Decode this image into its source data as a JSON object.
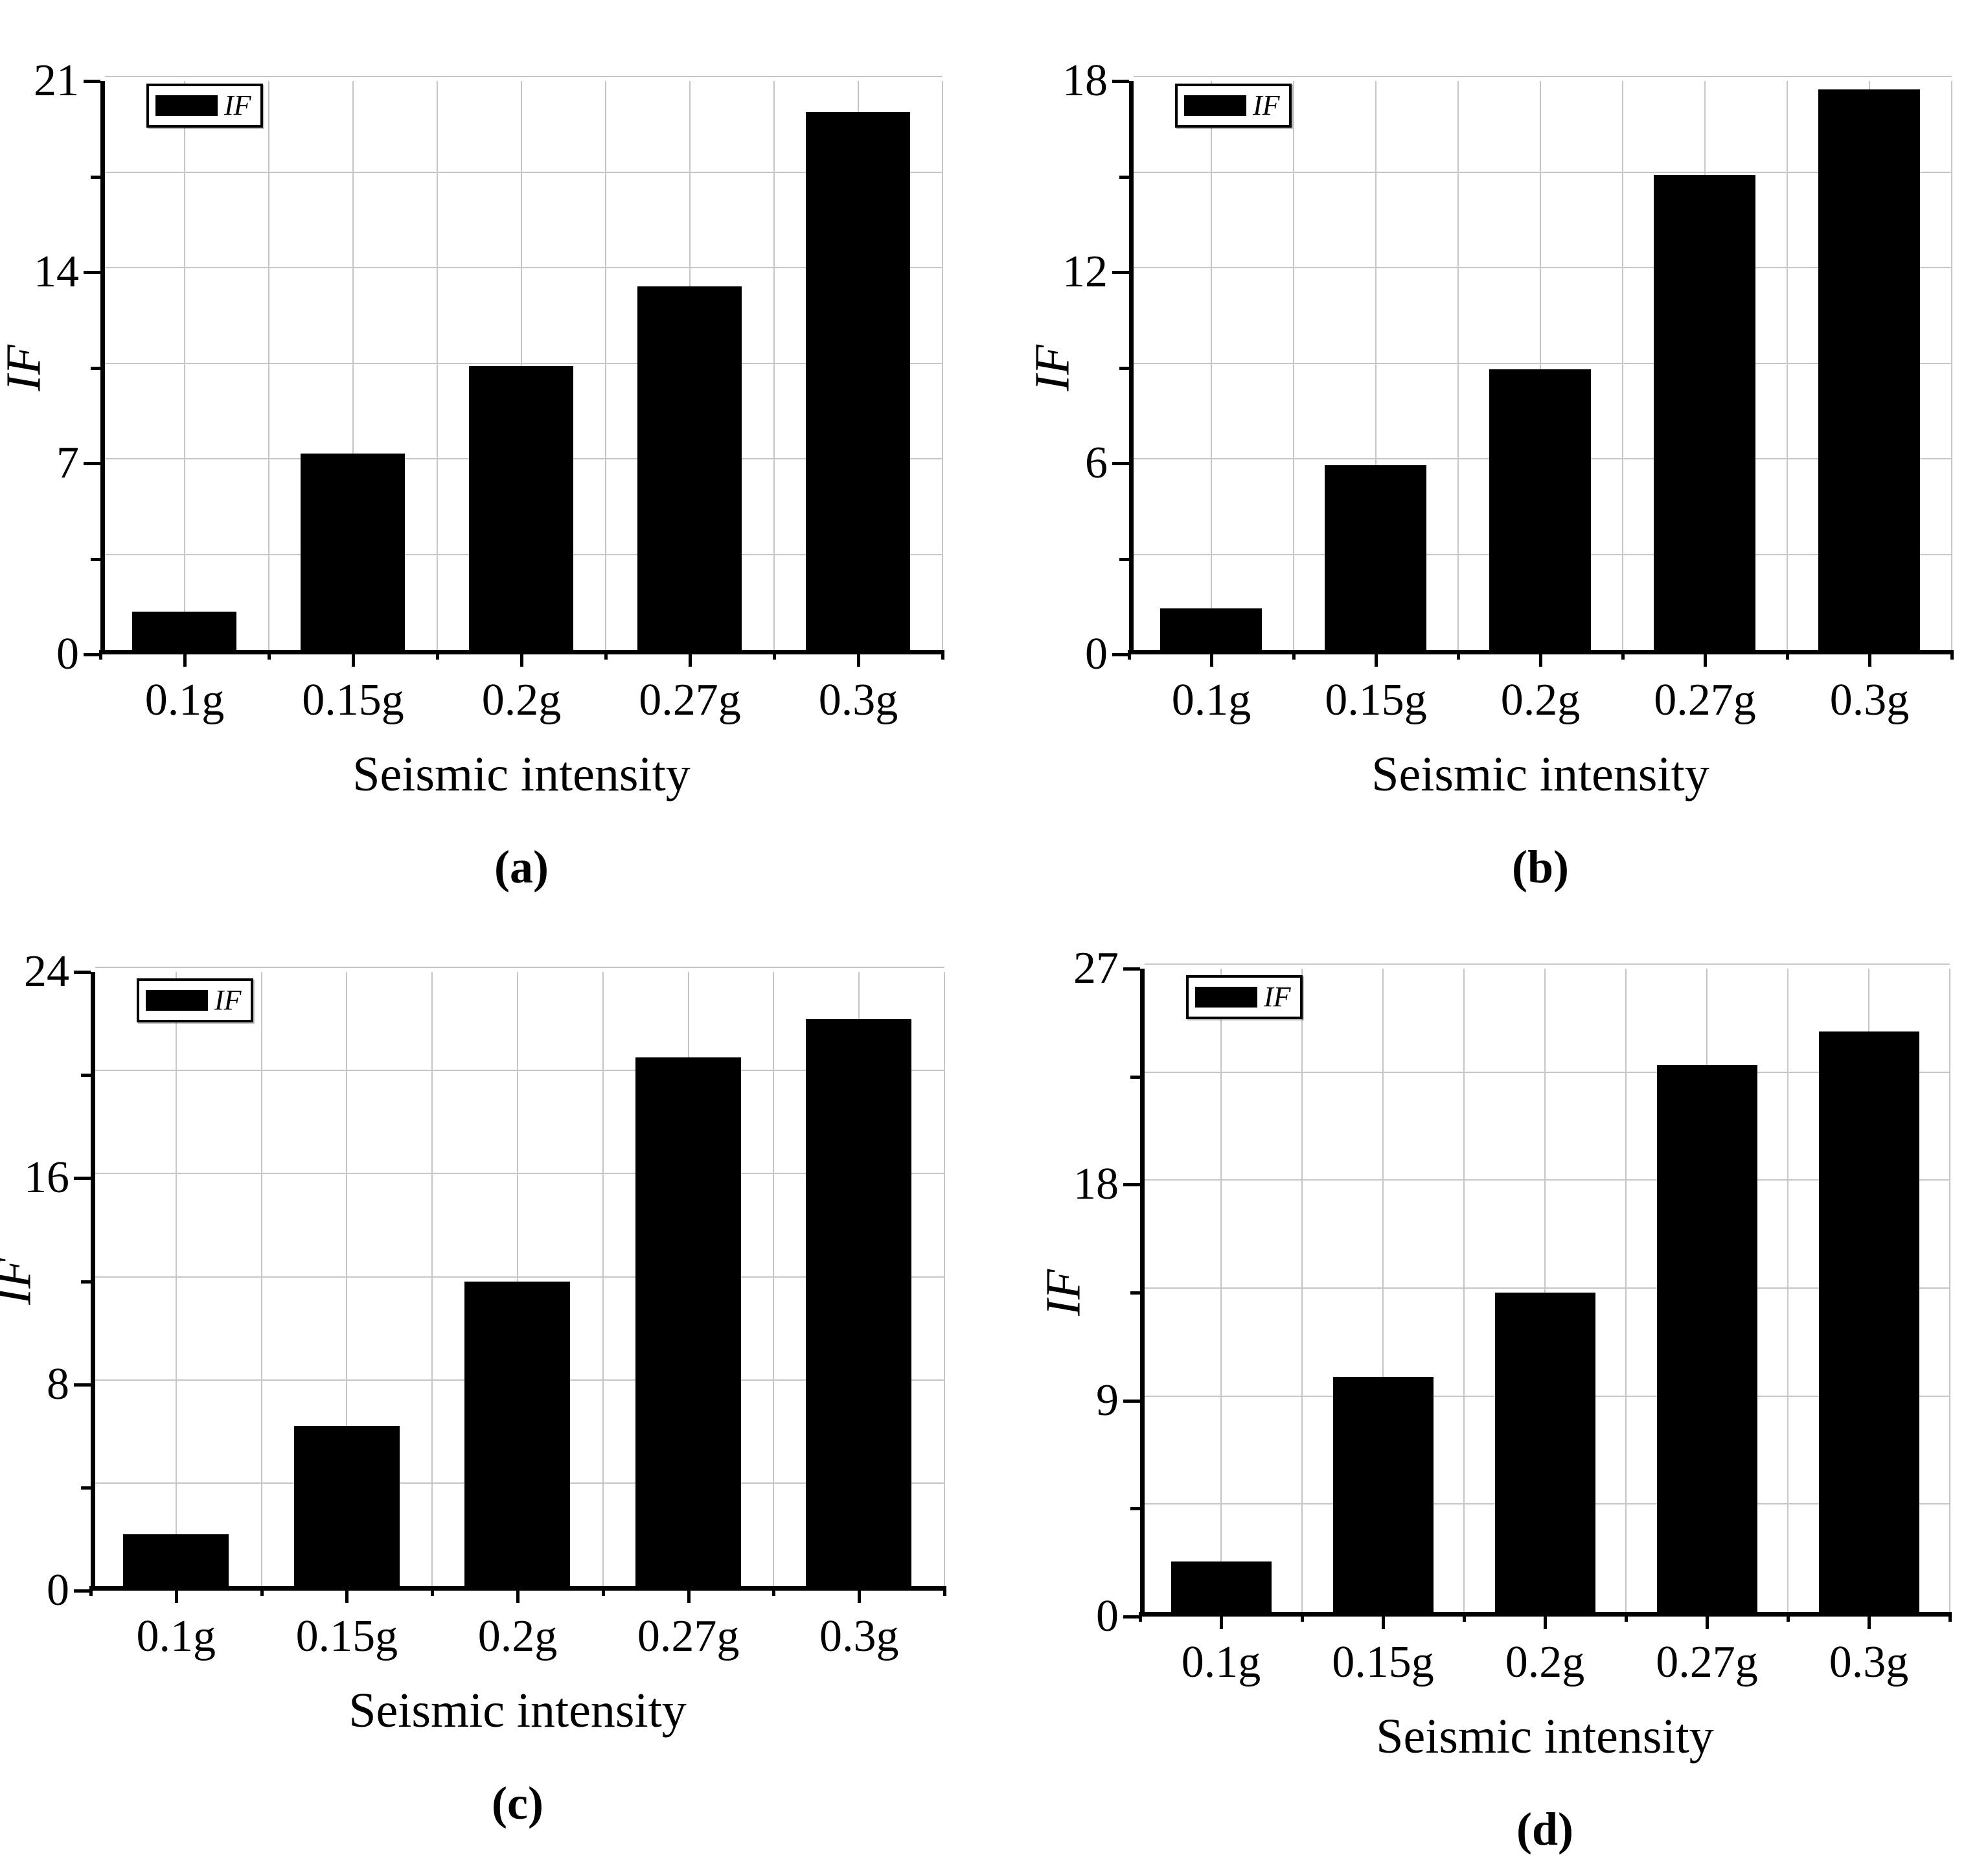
{
  "background": "#ffffff",
  "colors": {
    "bar": "#000000",
    "grid": "#c6c6c6",
    "axis": "#000000",
    "text": "#000000",
    "legend_border": "#000000",
    "legend_background": "#ffffff"
  },
  "x_axis_label": "Seismic intensity",
  "y_axis_label": "IF",
  "legend_label": "IF",
  "categories": [
    "0.1g",
    "0.15g",
    "0.2g",
    "0.27g",
    "0.3g"
  ],
  "chart_data": [
    {
      "type": "bar",
      "panel": "a",
      "caption": "(a)",
      "title": "",
      "xlabel": "Seismic intensity",
      "ylabel": "IF",
      "legend": [
        "IF"
      ],
      "legend_position": "top-left",
      "grid": true,
      "categories": [
        "0.1g",
        "0.15g",
        "0.2g",
        "0.27g",
        "0.3g"
      ],
      "values": [
        1.4,
        7.2,
        10.4,
        13.3,
        19.7
      ],
      "ylim": [
        0,
        21
      ],
      "yticks": [
        0,
        7,
        14,
        21
      ]
    },
    {
      "type": "bar",
      "panel": "b",
      "caption": "(b)",
      "title": "",
      "xlabel": "Seismic intensity",
      "ylabel": "IF",
      "legend": [
        "IF"
      ],
      "legend_position": "top-left",
      "grid": true,
      "categories": [
        "0.1g",
        "0.15g",
        "0.2g",
        "0.27g",
        "0.3g"
      ],
      "values": [
        1.3,
        5.8,
        8.8,
        14.9,
        17.6
      ],
      "ylim": [
        0,
        18
      ],
      "yticks": [
        0,
        6,
        12,
        18
      ]
    },
    {
      "type": "bar",
      "panel": "c",
      "caption": "(c)",
      "title": "",
      "xlabel": "Seismic intensity",
      "ylabel": "IF",
      "legend": [
        "IF"
      ],
      "legend_position": "top-left",
      "grid": true,
      "categories": [
        "0.1g",
        "0.15g",
        "0.2g",
        "0.27g",
        "0.3g"
      ],
      "values": [
        2.0,
        6.2,
        11.8,
        20.5,
        22.0
      ],
      "ylim": [
        0,
        24
      ],
      "yticks": [
        0,
        8,
        16,
        24
      ]
    },
    {
      "type": "bar",
      "panel": "d",
      "caption": "(d)",
      "title": "",
      "xlabel": "Seismic intensity",
      "ylabel": "IF",
      "legend": [
        "IF"
      ],
      "legend_position": "top-left",
      "grid": true,
      "categories": [
        "0.1g",
        "0.15g",
        "0.2g",
        "0.27g",
        "0.3g"
      ],
      "values": [
        2.1,
        9.8,
        13.3,
        22.8,
        24.2
      ],
      "ylim": [
        0,
        27
      ],
      "yticks": [
        0,
        9,
        18,
        27
      ]
    }
  ]
}
